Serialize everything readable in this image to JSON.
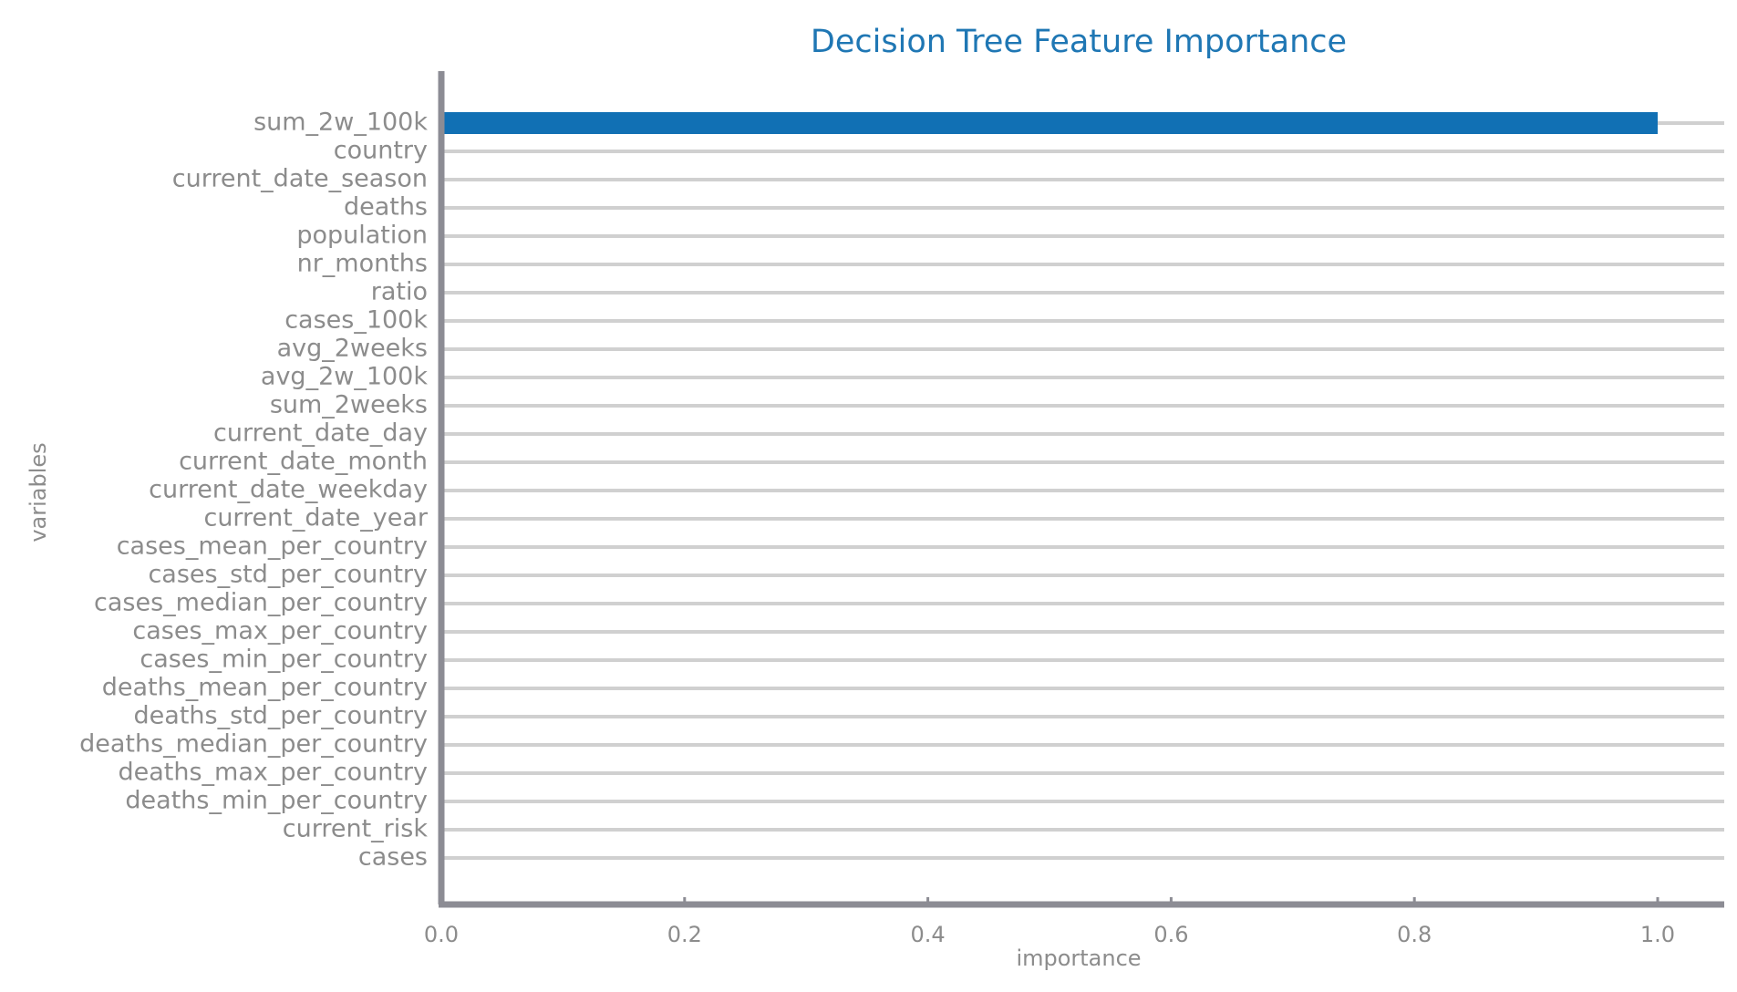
{
  "chart_data": {
    "type": "bar",
    "orientation": "horizontal",
    "title": "Decision Tree Feature Importance",
    "xlabel": "importance",
    "ylabel": "variables",
    "xlim": [
      0,
      1.05
    ],
    "xticks": [
      0.0,
      0.2,
      0.4,
      0.6,
      0.8,
      1.0
    ],
    "xtick_labels": [
      "0.0",
      "0.2",
      "0.4",
      "0.6",
      "0.8",
      "1.0"
    ],
    "grid": "horizontal",
    "legend": "none",
    "categories": [
      "sum_2w_100k",
      "country",
      "current_date_season",
      "deaths",
      "population",
      "nr_months",
      "ratio",
      "cases_100k",
      "avg_2weeks",
      "avg_2w_100k",
      "sum_2weeks",
      "current_date_day",
      "current_date_month",
      "current_date_weekday",
      "current_date_year",
      "cases_mean_per_country",
      "cases_std_per_country",
      "cases_median_per_country",
      "cases_max_per_country",
      "cases_min_per_country",
      "deaths_mean_per_country",
      "deaths_std_per_country",
      "deaths_median_per_country",
      "deaths_max_per_country",
      "deaths_min_per_country",
      "current_risk",
      "cases"
    ],
    "values": [
      1.0,
      0,
      0,
      0,
      0,
      0,
      0,
      0,
      0,
      0,
      0,
      0,
      0,
      0,
      0,
      0,
      0,
      0,
      0,
      0,
      0,
      0,
      0,
      0,
      0,
      0,
      0
    ]
  },
  "colors": {
    "bar": "#1170b4",
    "title": "#1f77b4",
    "axis": "#8c8c94",
    "grid": "#d0d0d0",
    "text": "#8c8c8c"
  }
}
